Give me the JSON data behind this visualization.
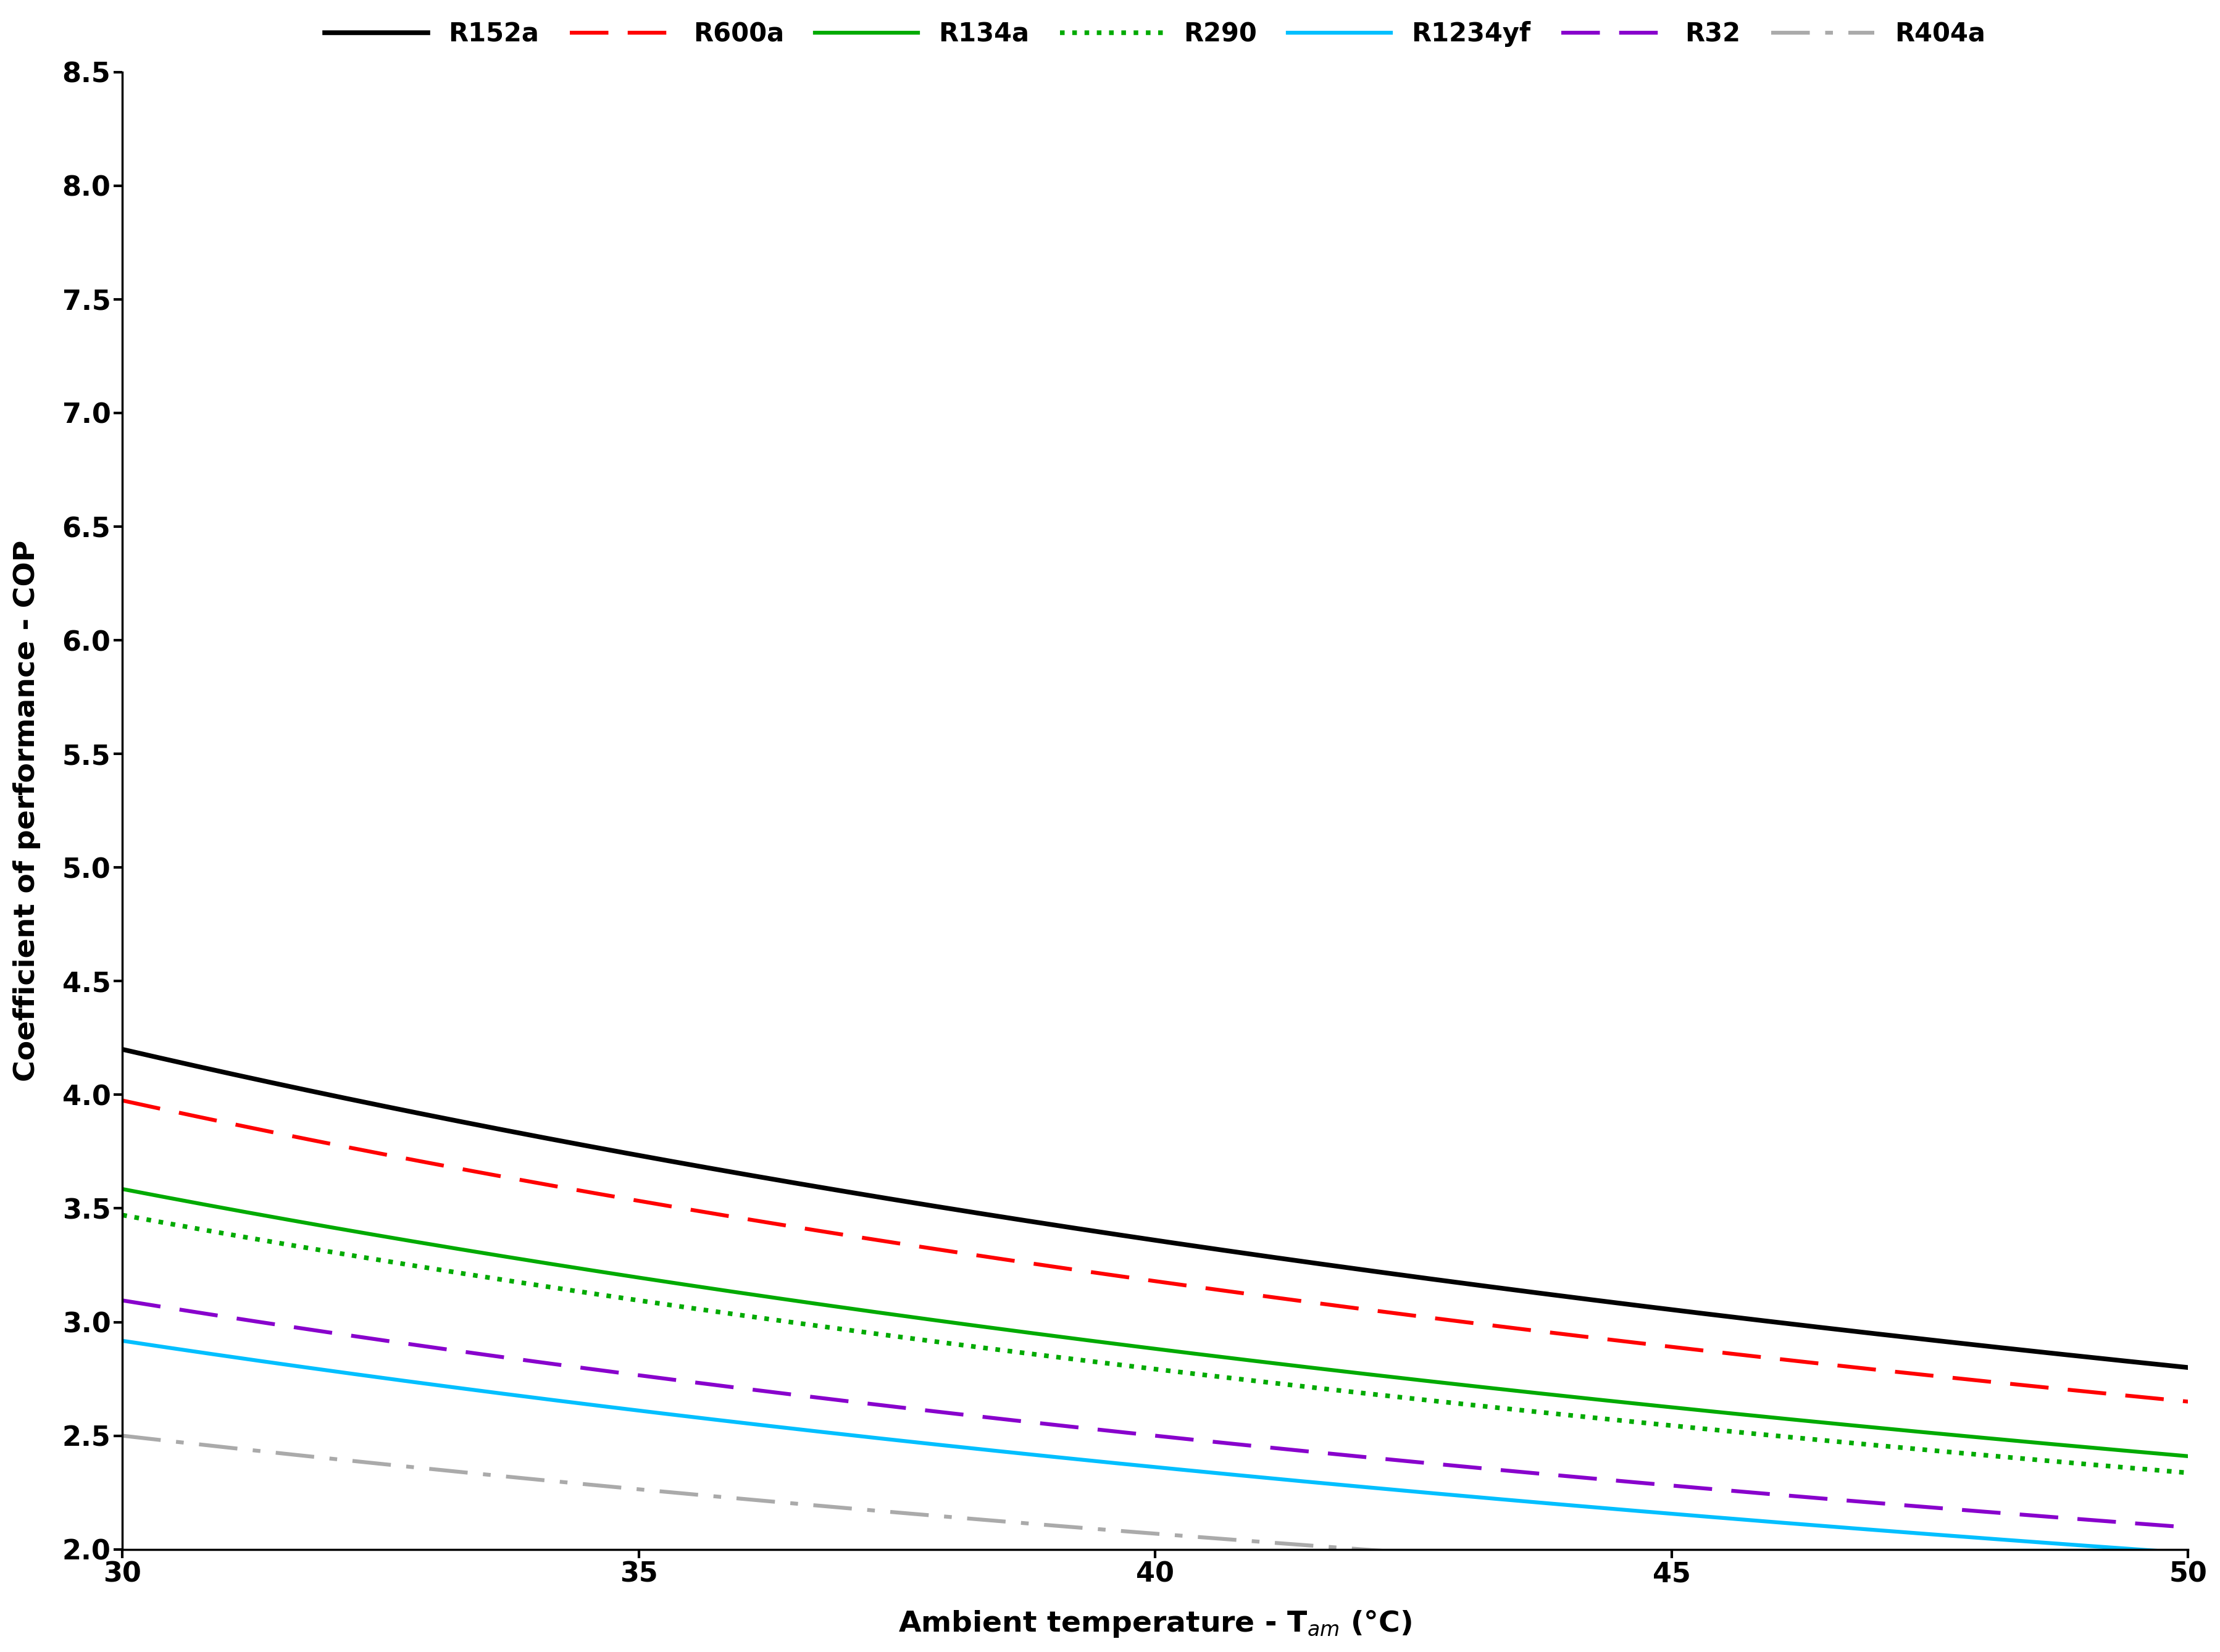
{
  "xlabel": "Ambient temperature - T$_{am}$ (°C)",
  "ylabel": "Coefficient of performance - COP",
  "xlim": [
    30,
    50
  ],
  "ylim": [
    2.0,
    8.5
  ],
  "xticks": [
    30,
    35,
    40,
    45,
    50
  ],
  "yticks": [
    2.0,
    2.5,
    3.0,
    3.5,
    4.0,
    4.5,
    5.0,
    5.5,
    6.0,
    6.5,
    7.0,
    7.5,
    8.0,
    8.5
  ],
  "series": [
    {
      "label": "R152a",
      "color": "#000000",
      "linestyle": "solid",
      "linewidth": 5.5,
      "a": 168.0,
      "b": -10.0
    },
    {
      "label": "R600a",
      "color": "#ff0000",
      "linestyle": "dashed",
      "linewidth": 4.5,
      "a": 160.0,
      "b": -9.8
    },
    {
      "label": "R134a",
      "color": "#00aa00",
      "linestyle": "solid",
      "linewidth": 4.5,
      "a": 148.0,
      "b": -11.5
    },
    {
      "label": "R290",
      "color": "#00aa00",
      "linestyle": "dotted",
      "linewidth": 4.5,
      "a": 144.0,
      "b": -11.8
    },
    {
      "label": "R1234yf",
      "color": "#00bfff",
      "linestyle": "solid",
      "linewidth": 4.5,
      "a": 128.0,
      "b": -12.8
    },
    {
      "label": "R32",
      "color": "#8800cc",
      "linestyle": "dashed",
      "linewidth": 4.5,
      "a": 134.0,
      "b": -12.0
    },
    {
      "label": "R404a",
      "color": "#aaaaaa",
      "linestyle": "dashdot",
      "linewidth": 4.5,
      "a": 128.0,
      "b": -17.5
    }
  ],
  "background_color": "#ffffff",
  "legend_fontsize": 30,
  "axis_label_fontsize": 34,
  "tick_fontsize": 32,
  "tick_fontweight": "bold",
  "axis_label_fontweight": "bold",
  "legend_fontweight": "bold"
}
